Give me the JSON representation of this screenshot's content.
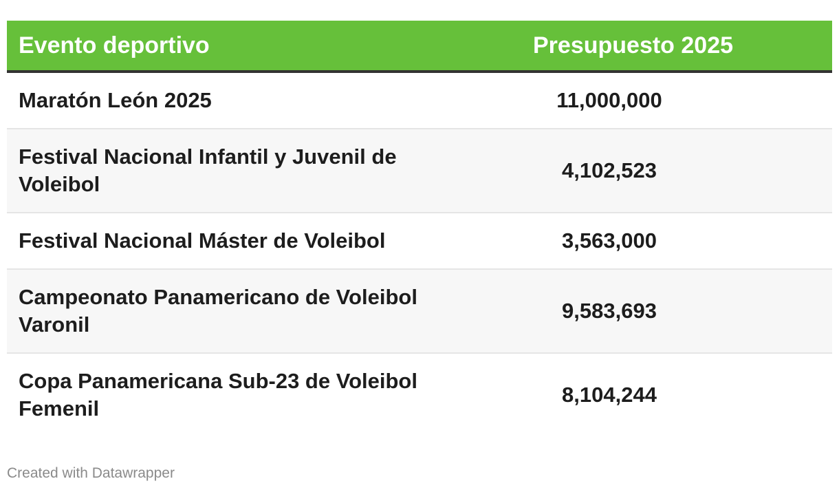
{
  "chart_data": {
    "type": "table",
    "columns": [
      "Evento deportivo",
      "Presupuesto 2025"
    ],
    "header_color": "#66c03a",
    "rows": [
      {
        "event": "Maratón León 2025",
        "budget": "11,000,000",
        "value": 11000000
      },
      {
        "event": "Festival Nacional Infantil y Juvenil de Voleibol",
        "budget": "4,102,523",
        "value": 4102523
      },
      {
        "event": "Festival Nacional Máster de Voleibol",
        "budget": "3,563,000",
        "value": 3563000
      },
      {
        "event": "Campeonato Panamericano de Voleibol Varonil",
        "budget": "9,583,693",
        "value": 9583693
      },
      {
        "event": "Copa Panamericana Sub-23 de Voleibol Femenil",
        "budget": "8,104,244",
        "value": 8104244
      }
    ]
  },
  "footer": {
    "credit": "Created with Datawrapper"
  }
}
